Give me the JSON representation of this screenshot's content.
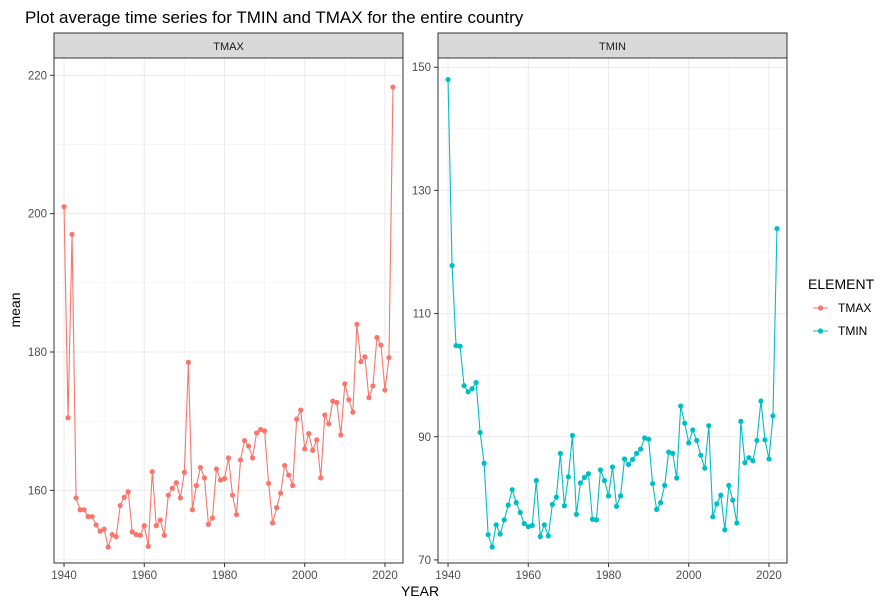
{
  "chart_data": {
    "type": "line",
    "title": "Plot average time series for TMIN and TMAX for the entire country",
    "xlabel": "YEAR",
    "ylabel": "mean",
    "legend": {
      "title": "ELEMENT",
      "placement": "right",
      "entries": [
        {
          "label": "TMAX",
          "color": "#F8766D"
        },
        {
          "label": "TMIN",
          "color": "#00BFC4"
        }
      ]
    },
    "grid": true,
    "panels": [
      {
        "strip": "TMAX",
        "color": "#F8766D",
        "xlim": [
          1937.5,
          2024.5
        ],
        "ylim": [
          149.5,
          222.5
        ],
        "xticks": [
          1940,
          1960,
          1980,
          2000,
          2020
        ],
        "yticks": [
          160,
          180,
          200,
          220
        ],
        "x": [
          1940,
          1941,
          1942,
          1943,
          1944,
          1945,
          1946,
          1947,
          1948,
          1949,
          1950,
          1951,
          1952,
          1953,
          1954,
          1955,
          1956,
          1957,
          1958,
          1959,
          1960,
          1961,
          1962,
          1963,
          1964,
          1965,
          1966,
          1967,
          1968,
          1969,
          1970,
          1971,
          1972,
          1973,
          1974,
          1975,
          1976,
          1977,
          1978,
          1979,
          1980,
          1981,
          1982,
          1983,
          1984,
          1985,
          1986,
          1987,
          1988,
          1989,
          1990,
          1991,
          1992,
          1993,
          1994,
          1995,
          1996,
          1997,
          1998,
          1999,
          2000,
          2001,
          2002,
          2003,
          2004,
          2005,
          2006,
          2007,
          2008,
          2009,
          2010,
          2011,
          2012,
          2013,
          2014,
          2015,
          2016,
          2017,
          2018,
          2019,
          2020,
          2021,
          2022
        ],
        "y": [
          201.0,
          170.5,
          197.0,
          158.9,
          157.2,
          157.2,
          156.2,
          156.2,
          155.0,
          154.1,
          154.4,
          151.8,
          153.6,
          153.3,
          157.8,
          159.0,
          159.8,
          154.0,
          153.6,
          153.5,
          154.9,
          151.9,
          162.7,
          154.9,
          155.7,
          153.5,
          159.3,
          160.3,
          161.1,
          158.9,
          162.6,
          178.5,
          157.2,
          160.7,
          163.3,
          161.8,
          155.1,
          156.0,
          163.1,
          161.5,
          161.7,
          164.7,
          159.3,
          156.5,
          164.4,
          167.2,
          166.4,
          164.7,
          168.3,
          168.8,
          168.6,
          161.0,
          155.3,
          157.5,
          159.6,
          163.6,
          162.2,
          160.7,
          170.3,
          171.6,
          166.0,
          168.2,
          165.8,
          167.3,
          161.8,
          170.9,
          169.6,
          172.9,
          172.7,
          168.0,
          175.4,
          173.1,
          171.3,
          184.0,
          178.6,
          179.3,
          173.4,
          175.1,
          182.1,
          181.0,
          174.5,
          179.2,
          218.3
        ]
      },
      {
        "strip": "TMIN",
        "color": "#00BFC4",
        "xlim": [
          1937.5,
          2024.5
        ],
        "ylim": [
          69.5,
          151.5
        ],
        "xticks": [
          1940,
          1960,
          1980,
          2000,
          2020
        ],
        "yticks": [
          70,
          90,
          110,
          130,
          150
        ],
        "x": [
          1940,
          1941,
          1942,
          1943,
          1944,
          1945,
          1946,
          1947,
          1948,
          1949,
          1950,
          1951,
          1952,
          1953,
          1954,
          1955,
          1956,
          1957,
          1958,
          1959,
          1960,
          1961,
          1962,
          1963,
          1964,
          1965,
          1966,
          1967,
          1968,
          1969,
          1970,
          1971,
          1972,
          1973,
          1974,
          1975,
          1976,
          1977,
          1978,
          1979,
          1980,
          1981,
          1982,
          1983,
          1984,
          1985,
          1986,
          1987,
          1988,
          1989,
          1990,
          1991,
          1992,
          1993,
          1994,
          1995,
          1996,
          1997,
          1998,
          1999,
          2000,
          2001,
          2002,
          2003,
          2004,
          2005,
          2006,
          2007,
          2008,
          2009,
          2010,
          2011,
          2012,
          2013,
          2014,
          2015,
          2016,
          2017,
          2018,
          2019,
          2020,
          2021,
          2022
        ],
        "y": [
          148.0,
          117.8,
          104.8,
          104.7,
          98.3,
          97.3,
          97.8,
          98.8,
          90.7,
          85.7,
          74.1,
          72.1,
          75.7,
          74.2,
          76.5,
          78.9,
          81.4,
          79.3,
          77.7,
          75.9,
          75.4,
          75.6,
          82.9,
          73.8,
          75.7,
          73.9,
          79.0,
          80.2,
          87.3,
          78.8,
          83.5,
          90.2,
          77.4,
          82.5,
          83.4,
          84.0,
          76.6,
          76.5,
          84.6,
          82.9,
          80.4,
          85.1,
          78.7,
          80.4,
          86.4,
          85.5,
          86.3,
          87.3,
          88.0,
          89.8,
          89.6,
          82.4,
          78.2,
          79.3,
          82.1,
          87.5,
          87.3,
          83.3,
          95.0,
          92.2,
          89.0,
          91.1,
          89.4,
          87.0,
          84.9,
          91.8,
          77.0,
          79.1,
          80.5,
          74.9,
          82.1,
          79.7,
          76.0,
          92.5,
          85.8,
          86.6,
          86.1,
          89.4,
          95.8,
          89.5,
          86.4,
          93.4,
          123.8
        ]
      }
    ]
  }
}
